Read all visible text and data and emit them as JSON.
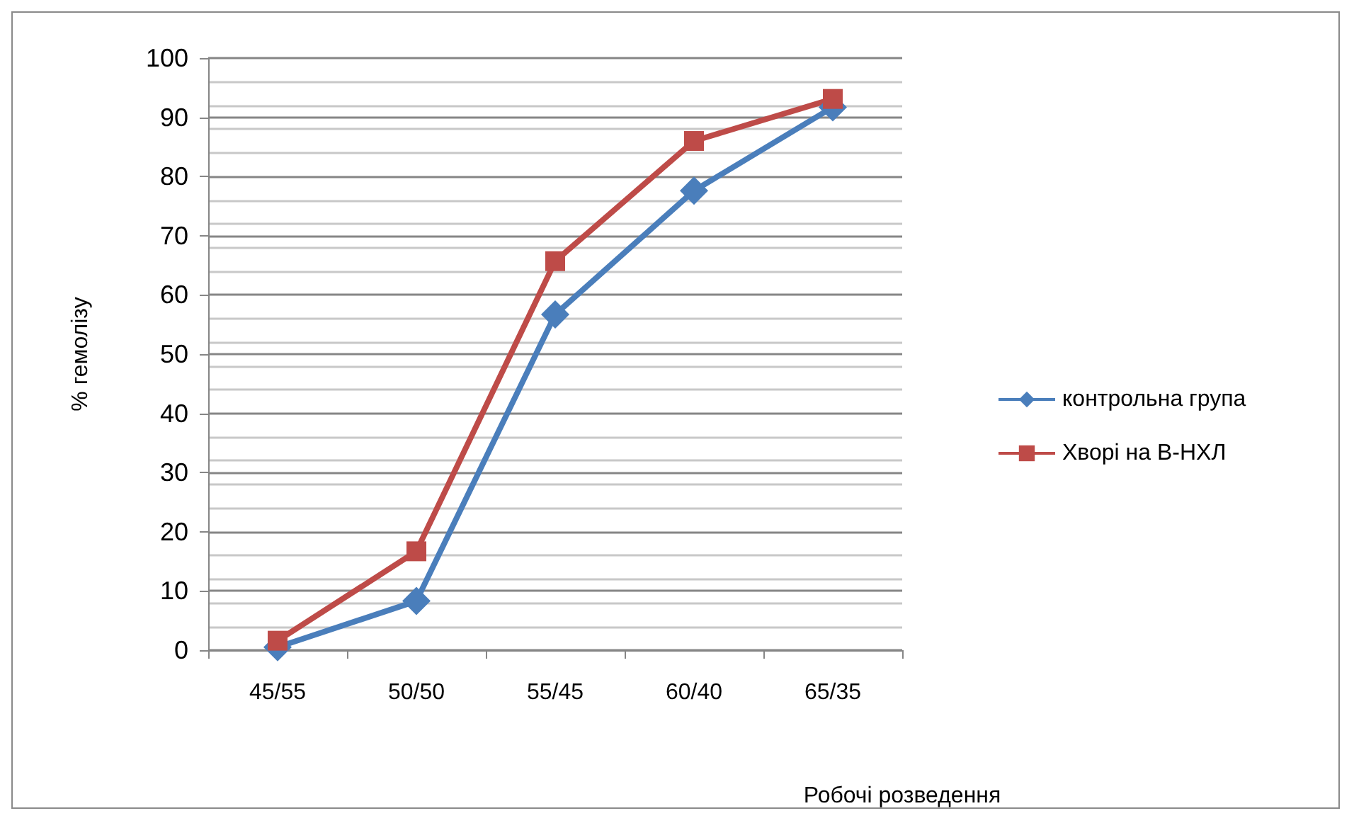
{
  "chart_data": {
    "type": "line",
    "xlabel": "Робочі розведення",
    "ylabel": "% гемолізу",
    "categories": [
      "45/55",
      "50/50",
      "55/45",
      "60/40",
      "65/35"
    ],
    "series": [
      {
        "name": "контрольна група",
        "color": "#4a7ebb",
        "marker": "diamond",
        "values": [
          0.5,
          8.3,
          56.7,
          77.6,
          91.7
        ]
      },
      {
        "name": "Хворі на В-НХЛ",
        "color": "#be4b48",
        "marker": "square",
        "values": [
          1.6,
          16.7,
          65.7,
          86,
          93.1
        ]
      }
    ],
    "ylim": [
      0,
      100
    ],
    "yticks": [
      0,
      10,
      20,
      30,
      40,
      50,
      60,
      70,
      80,
      90,
      100
    ],
    "grid": "y",
    "legend": "right"
  }
}
